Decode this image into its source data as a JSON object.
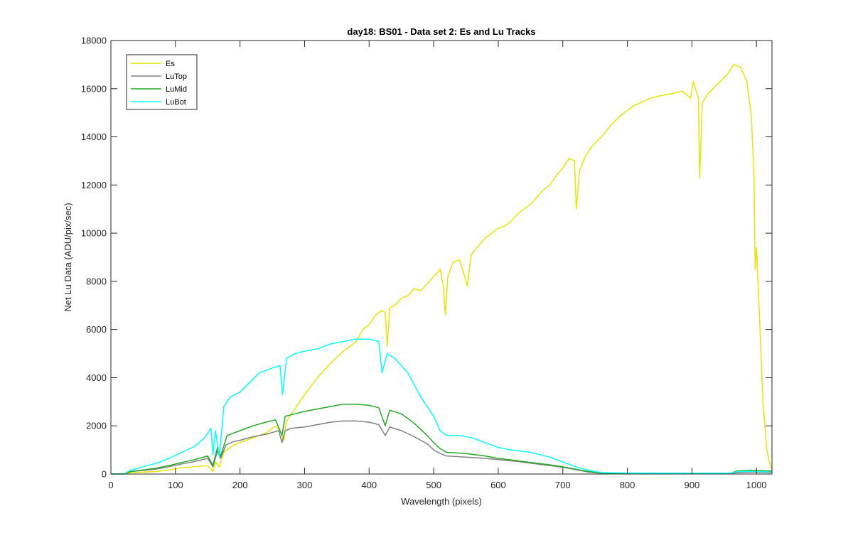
{
  "chart_data": {
    "type": "line",
    "title": "day18: BS01 - Data set 2: Es and Lu Tracks",
    "xlabel": "Wavelength (pixels)",
    "ylabel": "Net Lu Data (ADU/pix/sec)",
    "xlim": [
      0,
      1024
    ],
    "ylim": [
      0,
      18000
    ],
    "xticks": [
      0,
      100,
      200,
      300,
      400,
      500,
      600,
      700,
      800,
      900,
      1000
    ],
    "yticks": [
      0,
      2000,
      4000,
      6000,
      8000,
      10000,
      12000,
      14000,
      16000,
      18000
    ],
    "legend_position": "top-left",
    "grid": false,
    "series": [
      {
        "name": "Es",
        "color": "#e6e600",
        "points": [
          [
            0,
            0
          ],
          [
            20,
            0
          ],
          [
            30,
            50
          ],
          [
            50,
            80
          ],
          [
            70,
            100
          ],
          [
            90,
            170
          ],
          [
            110,
            260
          ],
          [
            130,
            300
          ],
          [
            150,
            350
          ],
          [
            158,
            100
          ],
          [
            162,
            500
          ],
          [
            168,
            300
          ],
          [
            175,
            900
          ],
          [
            190,
            1200
          ],
          [
            200,
            1300
          ],
          [
            220,
            1500
          ],
          [
            240,
            1700
          ],
          [
            255,
            2000
          ],
          [
            262,
            1800
          ],
          [
            268,
            1400
          ],
          [
            272,
            2200
          ],
          [
            285,
            2700
          ],
          [
            300,
            3300
          ],
          [
            320,
            4000
          ],
          [
            340,
            4600
          ],
          [
            360,
            5100
          ],
          [
            380,
            5500
          ],
          [
            390,
            6000
          ],
          [
            400,
            6200
          ],
          [
            410,
            6600
          ],
          [
            420,
            6800
          ],
          [
            425,
            6700
          ],
          [
            428,
            5300
          ],
          [
            432,
            6900
          ],
          [
            440,
            7000
          ],
          [
            450,
            7300
          ],
          [
            460,
            7400
          ],
          [
            470,
            7700
          ],
          [
            480,
            7600
          ],
          [
            490,
            7900
          ],
          [
            500,
            8200
          ],
          [
            510,
            8500
          ],
          [
            515,
            7800
          ],
          [
            518,
            6600
          ],
          [
            522,
            8200
          ],
          [
            530,
            8800
          ],
          [
            540,
            8900
          ],
          [
            548,
            8200
          ],
          [
            552,
            7800
          ],
          [
            558,
            9100
          ],
          [
            570,
            9500
          ],
          [
            580,
            9800
          ],
          [
            590,
            10000
          ],
          [
            600,
            10200
          ],
          [
            610,
            10300
          ],
          [
            620,
            10500
          ],
          [
            630,
            10800
          ],
          [
            640,
            11000
          ],
          [
            650,
            11200
          ],
          [
            660,
            11500
          ],
          [
            670,
            11800
          ],
          [
            680,
            12000
          ],
          [
            690,
            12400
          ],
          [
            700,
            12700
          ],
          [
            710,
            13100
          ],
          [
            718,
            13000
          ],
          [
            721,
            11000
          ],
          [
            726,
            12600
          ],
          [
            735,
            13200
          ],
          [
            745,
            13600
          ],
          [
            760,
            14000
          ],
          [
            775,
            14500
          ],
          [
            790,
            14900
          ],
          [
            800,
            15100
          ],
          [
            810,
            15300
          ],
          [
            820,
            15400
          ],
          [
            835,
            15600
          ],
          [
            850,
            15700
          ],
          [
            870,
            15800
          ],
          [
            885,
            15900
          ],
          [
            898,
            15600
          ],
          [
            902,
            16300
          ],
          [
            910,
            15600
          ],
          [
            912,
            12300
          ],
          [
            916,
            15400
          ],
          [
            925,
            15800
          ],
          [
            940,
            16200
          ],
          [
            955,
            16600
          ],
          [
            965,
            17000
          ],
          [
            975,
            16900
          ],
          [
            985,
            16300
          ],
          [
            992,
            14900
          ],
          [
            996,
            12500
          ],
          [
            998,
            8500
          ],
          [
            1000,
            9400
          ],
          [
            1004,
            7000
          ],
          [
            1010,
            3000
          ],
          [
            1016,
            1000
          ],
          [
            1020,
            500
          ],
          [
            1024,
            200
          ]
        ]
      },
      {
        "name": "LuTop",
        "color": "#808080",
        "points": [
          [
            0,
            0
          ],
          [
            20,
            0
          ],
          [
            30,
            100
          ],
          [
            50,
            150
          ],
          [
            70,
            200
          ],
          [
            90,
            300
          ],
          [
            110,
            420
          ],
          [
            130,
            520
          ],
          [
            150,
            650
          ],
          [
            158,
            300
          ],
          [
            165,
            950
          ],
          [
            170,
            650
          ],
          [
            178,
            1200
          ],
          [
            190,
            1350
          ],
          [
            200,
            1400
          ],
          [
            220,
            1550
          ],
          [
            240,
            1650
          ],
          [
            260,
            1800
          ],
          [
            265,
            1300
          ],
          [
            270,
            1800
          ],
          [
            280,
            1900
          ],
          [
            300,
            1950
          ],
          [
            320,
            2050
          ],
          [
            340,
            2150
          ],
          [
            360,
            2200
          ],
          [
            380,
            2200
          ],
          [
            400,
            2150
          ],
          [
            415,
            2050
          ],
          [
            425,
            1600
          ],
          [
            432,
            1950
          ],
          [
            450,
            1800
          ],
          [
            470,
            1550
          ],
          [
            490,
            1250
          ],
          [
            500,
            1000
          ],
          [
            510,
            850
          ],
          [
            520,
            750
          ],
          [
            550,
            700
          ],
          [
            580,
            650
          ],
          [
            600,
            600
          ],
          [
            630,
            520
          ],
          [
            650,
            450
          ],
          [
            680,
            350
          ],
          [
            700,
            280
          ],
          [
            720,
            180
          ],
          [
            740,
            80
          ],
          [
            760,
            30
          ],
          [
            800,
            20
          ],
          [
            900,
            20
          ],
          [
            960,
            20
          ],
          [
            970,
            60
          ],
          [
            990,
            80
          ],
          [
            1024,
            60
          ]
        ]
      },
      {
        "name": "LuMid",
        "color": "#22aa22",
        "points": [
          [
            0,
            0
          ],
          [
            20,
            0
          ],
          [
            30,
            100
          ],
          [
            50,
            170
          ],
          [
            70,
            240
          ],
          [
            90,
            350
          ],
          [
            110,
            480
          ],
          [
            130,
            600
          ],
          [
            150,
            750
          ],
          [
            158,
            350
          ],
          [
            165,
            1100
          ],
          [
            170,
            750
          ],
          [
            180,
            1600
          ],
          [
            200,
            1800
          ],
          [
            220,
            2000
          ],
          [
            240,
            2150
          ],
          [
            255,
            2250
          ],
          [
            265,
            1600
          ],
          [
            270,
            2400
          ],
          [
            285,
            2500
          ],
          [
            300,
            2600
          ],
          [
            320,
            2700
          ],
          [
            340,
            2800
          ],
          [
            360,
            2900
          ],
          [
            380,
            2900
          ],
          [
            400,
            2850
          ],
          [
            415,
            2750
          ],
          [
            425,
            2000
          ],
          [
            432,
            2650
          ],
          [
            450,
            2500
          ],
          [
            470,
            2100
          ],
          [
            490,
            1600
          ],
          [
            500,
            1300
          ],
          [
            510,
            1050
          ],
          [
            520,
            900
          ],
          [
            550,
            850
          ],
          [
            580,
            750
          ],
          [
            600,
            650
          ],
          [
            630,
            550
          ],
          [
            650,
            480
          ],
          [
            680,
            380
          ],
          [
            700,
            300
          ],
          [
            720,
            200
          ],
          [
            740,
            100
          ],
          [
            760,
            40
          ],
          [
            800,
            30
          ],
          [
            900,
            30
          ],
          [
            960,
            30
          ],
          [
            970,
            130
          ],
          [
            990,
            150
          ],
          [
            1024,
            120
          ]
        ]
      },
      {
        "name": "LuBot",
        "color": "#00ffff",
        "points": [
          [
            0,
            0
          ],
          [
            20,
            0
          ],
          [
            30,
            150
          ],
          [
            50,
            300
          ],
          [
            70,
            450
          ],
          [
            90,
            650
          ],
          [
            110,
            900
          ],
          [
            130,
            1150
          ],
          [
            145,
            1500
          ],
          [
            155,
            1900
          ],
          [
            158,
            800
          ],
          [
            162,
            1800
          ],
          [
            168,
            700
          ],
          [
            175,
            2800
          ],
          [
            185,
            3200
          ],
          [
            200,
            3400
          ],
          [
            215,
            3800
          ],
          [
            230,
            4200
          ],
          [
            250,
            4400
          ],
          [
            262,
            4500
          ],
          [
            266,
            3300
          ],
          [
            272,
            4800
          ],
          [
            285,
            5000
          ],
          [
            300,
            5100
          ],
          [
            320,
            5200
          ],
          [
            340,
            5400
          ],
          [
            360,
            5500
          ],
          [
            380,
            5600
          ],
          [
            400,
            5600
          ],
          [
            415,
            5500
          ],
          [
            420,
            4200
          ],
          [
            428,
            5000
          ],
          [
            440,
            4800
          ],
          [
            450,
            4500
          ],
          [
            460,
            4200
          ],
          [
            470,
            3700
          ],
          [
            480,
            3200
          ],
          [
            490,
            2800
          ],
          [
            500,
            2400
          ],
          [
            510,
            1800
          ],
          [
            520,
            1600
          ],
          [
            540,
            1600
          ],
          [
            560,
            1500
          ],
          [
            580,
            1300
          ],
          [
            600,
            1100
          ],
          [
            620,
            1000
          ],
          [
            650,
            900
          ],
          [
            680,
            700
          ],
          [
            700,
            500
          ],
          [
            720,
            300
          ],
          [
            740,
            150
          ],
          [
            760,
            60
          ],
          [
            800,
            40
          ],
          [
            900,
            30
          ],
          [
            960,
            30
          ],
          [
            970,
            100
          ],
          [
            990,
            110
          ],
          [
            1024,
            80
          ]
        ]
      }
    ]
  }
}
